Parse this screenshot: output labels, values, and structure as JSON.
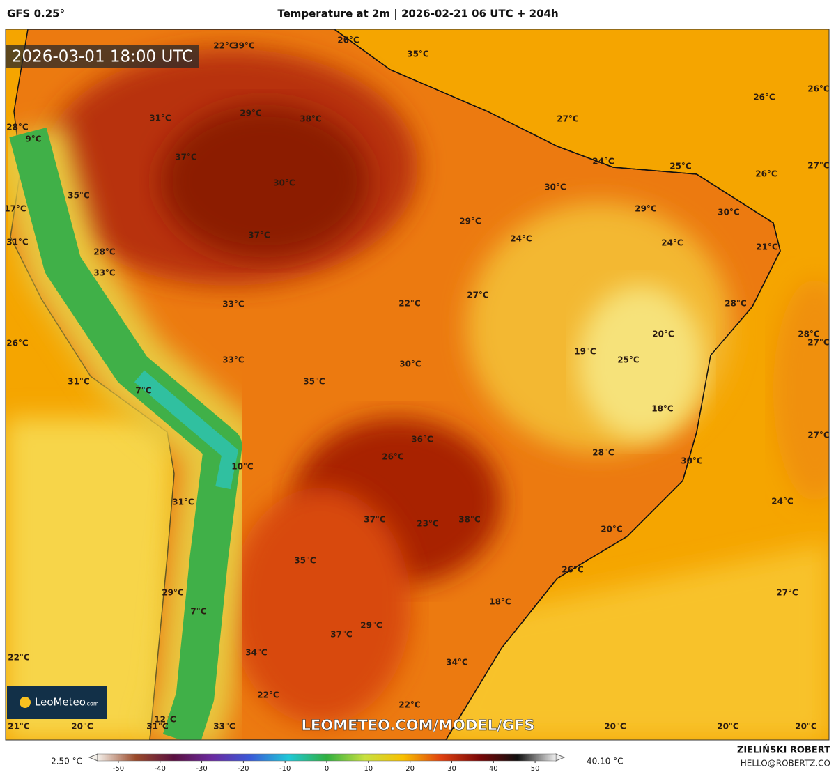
{
  "header": {
    "model": "GFS 0.25°",
    "title": "Temperature at 2m | 2026-02-21 06 UTC + 204h"
  },
  "valid_time": "2026-03-01 18:00 UTC",
  "map_labels": [
    "22°C",
    "39°C",
    "26°C",
    "35°C",
    "26°C",
    "26°C",
    "29°C",
    "38°C",
    "31°C",
    "27°C",
    "28°C",
    "9°C",
    "37°C",
    "24°C",
    "25°C",
    "26°C",
    "27°C",
    "30°C",
    "30°C",
    "35°C",
    "17°C",
    "29°C",
    "30°C",
    "29°C",
    "37°C",
    "24°C",
    "24°C",
    "21°C",
    "31°C",
    "28°C",
    "33°C",
    "27°C",
    "22°C",
    "33°C",
    "28°C",
    "20°C",
    "28°C",
    "27°C",
    "26°C",
    "19°C",
    "25°C",
    "33°C",
    "30°C",
    "35°C",
    "31°C",
    "7°C",
    "18°C",
    "36°C",
    "27°C",
    "26°C",
    "28°C",
    "30°C",
    "10°C",
    "31°C",
    "24°C",
    "37°C",
    "23°C",
    "38°C",
    "20°C",
    "35°C",
    "26°C",
    "29°C",
    "27°C",
    "18°C",
    "7°C",
    "29°C",
    "37°C",
    "34°C",
    "34°C",
    "22°C",
    "22°C",
    "22°C",
    "12°C",
    "21°C",
    "20°C",
    "31°C",
    "33°C",
    "20°C",
    "20°C",
    "20°C"
  ],
  "watermark": "LEOMETEO.COM/MODEL/GFS",
  "logo": {
    "name": "LeoMeteo",
    "suffix": ".com"
  },
  "colorbar": {
    "min_label": "2.50 °C",
    "max_label": "40.10 °C",
    "range": [
      -55,
      55
    ],
    "ticks": [
      -50,
      -40,
      -30,
      -20,
      -10,
      0,
      10,
      20,
      30,
      40,
      50
    ],
    "colors": [
      "#f4f0ea",
      "#9a4a2a",
      "#5a1040",
      "#6a2aa0",
      "#3a5ad8",
      "#20c8d8",
      "#30b040",
      "#c8e040",
      "#f8c000",
      "#e04010",
      "#7a0808",
      "#101010",
      "#f0f0f0"
    ]
  },
  "footer": {
    "author": "ZIELIŃSKI ROBERT",
    "contact": "HELLO@ROBERTZ.CO"
  }
}
